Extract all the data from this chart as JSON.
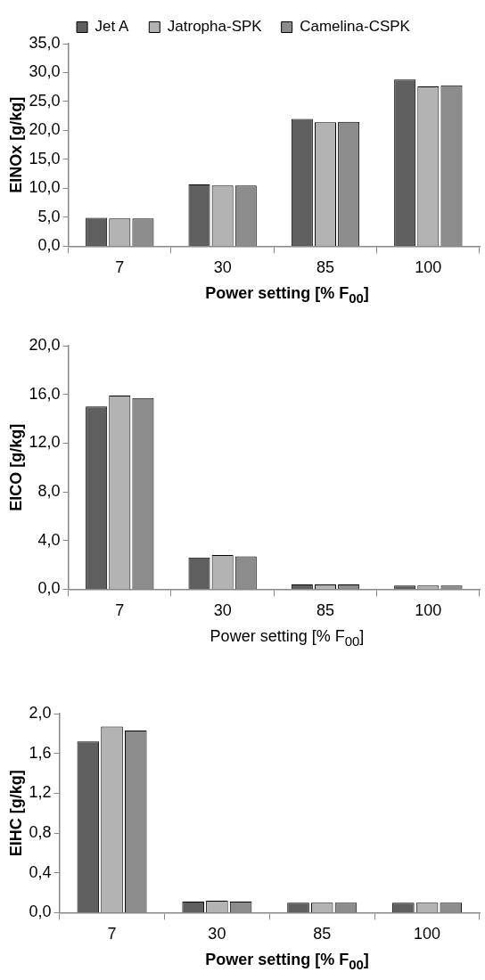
{
  "chart_data": [
    {
      "type": "bar",
      "ylabel": "EINOx [g/kg]",
      "xlabel": "Power setting [% F$_{00}$]",
      "categories": [
        "7",
        "30",
        "85",
        "100"
      ],
      "legend": "top",
      "ylim": [
        0,
        35
      ],
      "yticks": [
        {
          "value": 0,
          "label": "0,0"
        },
        {
          "value": 5,
          "label": "5,0"
        },
        {
          "value": 10,
          "label": "10,0"
        },
        {
          "value": 15,
          "label": "15,0"
        },
        {
          "value": 20,
          "label": "20,0"
        },
        {
          "value": 25,
          "label": "25,0"
        },
        {
          "value": 30,
          "label": "30,0"
        },
        {
          "value": 35,
          "label": "35,0"
        }
      ],
      "series": [
        {
          "name": "Jet A",
          "color": "#5f5f5f",
          "values": [
            4.9,
            10.7,
            22.0,
            28.8
          ]
        },
        {
          "name": "Jatropha-SPK",
          "color": "#b3b3b3",
          "values": [
            4.8,
            10.5,
            21.4,
            27.6
          ]
        },
        {
          "name": "Camelina-CSPK",
          "color": "#8c8c8c",
          "values": [
            4.8,
            10.5,
            21.5,
            27.8
          ]
        }
      ]
    },
    {
      "type": "bar",
      "ylabel": "EICO [g/kg]",
      "xlabel": "Power setting [% F$_{00}$]",
      "categories": [
        "7",
        "30",
        "85",
        "100"
      ],
      "ylim": [
        0,
        20
      ],
      "yticks": [
        {
          "value": 0,
          "label": "0,0"
        },
        {
          "value": 4,
          "label": "4,0"
        },
        {
          "value": 8,
          "label": "8,0"
        },
        {
          "value": 12,
          "label": "12,0"
        },
        {
          "value": 16,
          "label": "16,0"
        },
        {
          "value": 20,
          "label": "20,0"
        }
      ],
      "series": [
        {
          "color": "#5f5f5f",
          "values": [
            15.0,
            2.6,
            0.4,
            0.3
          ]
        },
        {
          "color": "#b3b3b3",
          "values": [
            15.9,
            2.8,
            0.4,
            0.3
          ]
        },
        {
          "color": "#8c8c8c",
          "values": [
            15.7,
            2.7,
            0.4,
            0.3
          ]
        }
      ]
    },
    {
      "type": "bar",
      "ylabel": "EIHC [g/kg]",
      "xlabel": "Power setting [% F$_{00}$]",
      "categories": [
        "7",
        "30",
        "85",
        "100"
      ],
      "ylim": [
        0,
        2
      ],
      "yticks": [
        {
          "value": 0,
          "label": "0,0"
        },
        {
          "value": 0.4,
          "label": "0,4"
        },
        {
          "value": 0.8,
          "label": "0,8"
        },
        {
          "value": 1.2,
          "label": "1,2"
        },
        {
          "value": 1.6,
          "label": "1,6"
        },
        {
          "value": 2,
          "label": "2,0"
        }
      ],
      "series": [
        {
          "color": "#5f5f5f",
          "values": [
            1.72,
            0.11,
            0.1,
            0.1
          ]
        },
        {
          "color": "#b3b3b3",
          "values": [
            1.87,
            0.12,
            0.1,
            0.1
          ]
        },
        {
          "color": "#8c8c8c",
          "values": [
            1.83,
            0.11,
            0.1,
            0.1
          ]
        }
      ]
    }
  ]
}
